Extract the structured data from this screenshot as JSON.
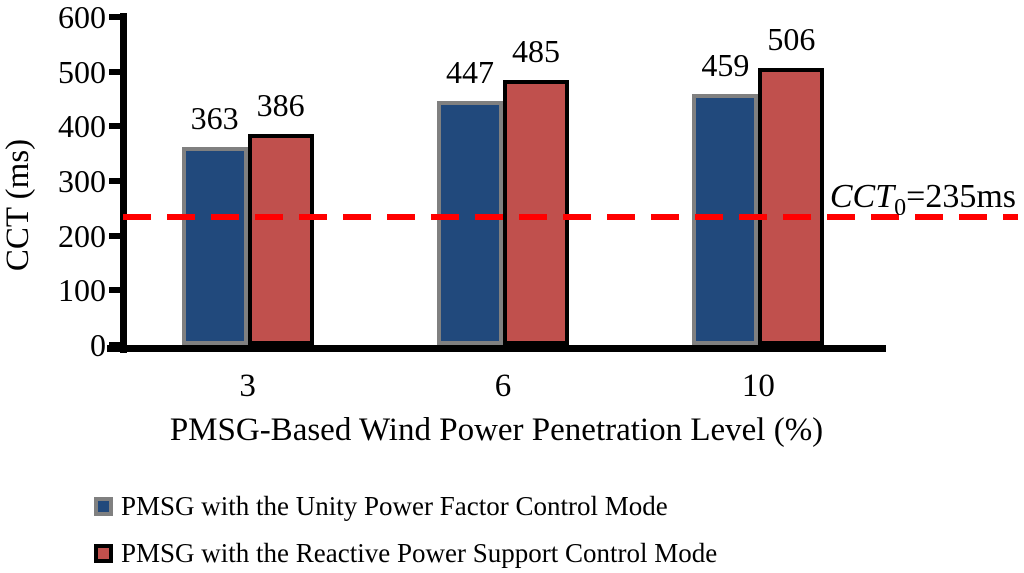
{
  "chart_data": {
    "type": "bar",
    "categories": [
      "3",
      "6",
      "10"
    ],
    "series": [
      {
        "name": "PMSG with the Unity Power Factor Control Mode",
        "values": [
          363,
          447,
          459
        ],
        "fill": "#21497C",
        "border": "#808080"
      },
      {
        "name": "PMSG with the Reactive Power Support Control Mode",
        "values": [
          386,
          485,
          506
        ],
        "fill": "#C0504D",
        "border": "#000000"
      }
    ],
    "title": "",
    "xlabel": "PMSG-Based Wind Power Penetration Level (%)",
    "ylabel": "CCT (ms)",
    "ylim": [
      0,
      600
    ],
    "yticks": [
      0,
      100,
      200,
      300,
      400,
      500,
      600
    ],
    "grid": false,
    "bar_labels": true,
    "legend_position": "bottom-left",
    "reference_line": {
      "value": 235,
      "color": "#FF0000",
      "style": "dashed",
      "label": {
        "italic_text": "CCT",
        "subscript": "0",
        "rest": "=235ms"
      }
    }
  }
}
